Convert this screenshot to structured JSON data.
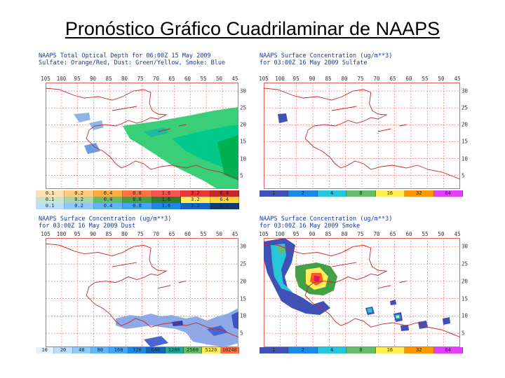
{
  "slide": {
    "title": "Pronóstico Gráfico Cuadrilaminar de NAAPS"
  },
  "lon_ticks": [
    "105",
    "100",
    "95",
    "90",
    "85",
    "80",
    "75",
    "70",
    "65",
    "60",
    "55",
    "50",
    "45"
  ],
  "lat_ticks": [
    "30",
    "25",
    "20",
    "15",
    "10",
    "5"
  ],
  "colors": {
    "coast": "#c62828",
    "grid": "#e53935",
    "header_text": "#1a3a9a"
  },
  "panels": [
    {
      "id": "total-optical-depth",
      "line1": "NAAPS Total Optical Depth for 06:00Z 15 May 2009",
      "line2": "Sulfate: Orange/Red, Dust: Green/Yellow, Smoke: Blue",
      "colorbar_rows": [
        {
          "labels": [
            "0.1",
            "0.2",
            "0.4",
            "0.8",
            "1.6",
            "3.2",
            "6.4"
          ],
          "colors": [
            "#ffe0b2",
            "#ffcc80",
            "#ffab40",
            "#ff7043",
            "#ff5252",
            "#e53935",
            "#c62828"
          ]
        },
        {
          "labels": [
            "0.1",
            "0.2",
            "0.4",
            "0.8",
            "1.6",
            "3.2",
            "6.4"
          ],
          "colors": [
            "#c8e6c9",
            "#a5d6a7",
            "#66bb6a",
            "#43a047",
            "#2e7d32",
            "#ffee58",
            "#fdd835"
          ]
        },
        {
          "labels": [
            "0.1",
            "0.2",
            "0.4",
            "0.8",
            "1.6",
            "3.2",
            "6.4"
          ],
          "colors": [
            "#bbdefb",
            "#90caf9",
            "#64b5f6",
            "#42a5f5",
            "#1e88e5",
            "#1565c0",
            "#0d3b73"
          ]
        }
      ]
    },
    {
      "id": "sulfate",
      "line1": "NAAPS Surface Concentration (ug/m**3)",
      "line2": "for 03:00Z 16 May 2009  Sulfate",
      "colorbar_rows": [
        {
          "labels": [
            "1",
            "2",
            "4",
            "8",
            "16",
            "32",
            "64"
          ],
          "colors": [
            "#3f51b5",
            "#1e88e5",
            "#26c6da",
            "#66bb6a",
            "#ffee58",
            "#ff9800",
            "#e040fb"
          ]
        }
      ]
    },
    {
      "id": "dust",
      "line1": "NAAPS Surface Concentration (ug/m**3)",
      "line2": "for 03:00Z 16 May 2009  Dust",
      "colorbar_rows": [
        {
          "labels": [
            "10",
            "20",
            "40",
            "80",
            "160",
            "320",
            "640",
            "1280",
            "2560",
            "5120",
            "10240"
          ],
          "colors": [
            "#e3f2fd",
            "#bbdefb",
            "#90caf9",
            "#64b5f6",
            "#42a5f5",
            "#1e88e5",
            "#1565c0",
            "#26a69a",
            "#66bb6a",
            "#ffee58",
            "#ff7043"
          ]
        }
      ]
    },
    {
      "id": "smoke",
      "line1": "NAAPS Surface Concentration (ug/m**3)",
      "line2": "for 03:00Z 16 May 2009  Smoke",
      "colorbar_rows": [
        {
          "labels": [
            "1",
            "2",
            "4",
            "8",
            "16",
            "32",
            "64"
          ],
          "colors": [
            "#3f51b5",
            "#1e88e5",
            "#26c6da",
            "#66bb6a",
            "#ffee58",
            "#ff9800",
            "#e040fb"
          ]
        }
      ]
    }
  ]
}
